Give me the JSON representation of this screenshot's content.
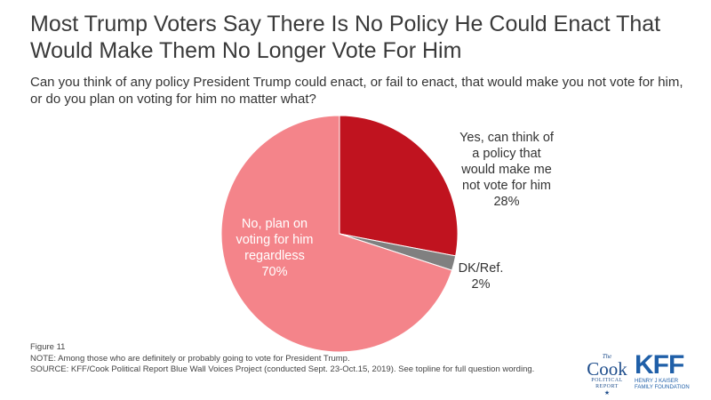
{
  "header": {
    "title_line1": "Most Trump Voters Say There Is No Policy He Could Enact That",
    "title_line2": "Would Make Them No Longer Vote For Him",
    "subtitle_line1": "Can you think of any policy President Trump could enact, or fail to enact, that would make you not vote for him,",
    "subtitle_line2": "or do you plan on voting for him no matter what?"
  },
  "chart_data": {
    "type": "pie",
    "title": "",
    "slices": [
      {
        "label_lines": [
          "Yes, can think of",
          "a policy that",
          "would make me",
          "not vote for him"
        ],
        "value": 28,
        "value_label": "28%",
        "color": "#c0131f"
      },
      {
        "label_lines": [
          "DK/Ref."
        ],
        "value": 2,
        "value_label": "2%",
        "color": "#808080"
      },
      {
        "label_lines": [
          "No, plan on",
          "voting for him",
          "regardless"
        ],
        "value": 70,
        "value_label": "70%",
        "color": "#f4848a"
      }
    ],
    "start_angle": "12 o'clock",
    "direction": "clockwise",
    "legend": "none",
    "slice_border_color": "#ffffff"
  },
  "footer": {
    "figure": "Figure 11",
    "note": "NOTE: Among those who are definitely or probably going to vote for President Trump.",
    "source": "SOURCE: KFF/Cook Political Report Blue Wall Voices Project (conducted Sept. 23-Oct.15, 2019). See topline for full question wording."
  },
  "logos": {
    "cook_the": "The",
    "cook_name": "Cook",
    "cook_line2": "POLITICAL",
    "cook_line3": "REPORT",
    "kff_name": "KFF",
    "kff_line2": "HENRY J KAISER",
    "kff_line3": "FAMILY FOUNDATION"
  }
}
